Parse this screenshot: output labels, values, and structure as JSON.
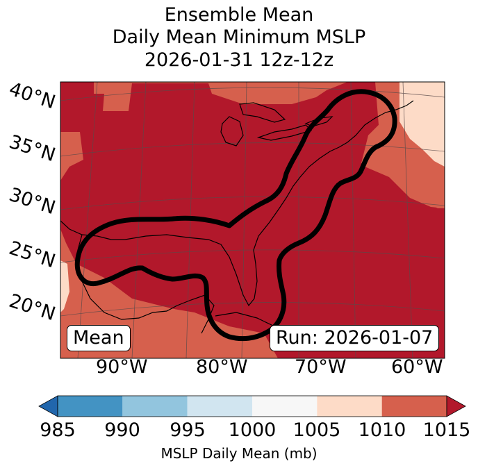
{
  "title": {
    "line1": "Ensemble Mean",
    "line2": "Daily Mean Minimum MSLP",
    "line3": "2026-01-31 12z-12z"
  },
  "map": {
    "region": "Gulf of Mexico and US East Coast",
    "latitude_labels": [
      "40°N",
      "35°N",
      "30°N",
      "25°N",
      "20°N"
    ],
    "longitude_labels": [
      "90°W",
      "80°W",
      "70°W",
      "60°W"
    ],
    "field": "Ensemble mean daily mean minimum MSLP",
    "outlined_area": "Thick black contour enclosing Gulf of Mexico, Florida and US East Coast region",
    "colors": {
      "bin_1005_1010": "#fddbc7",
      "bin_1010_1015": "#d6604d",
      "bin_above_1015": "#b2182b",
      "contour": "#000000",
      "grid": "#5a4a4a"
    }
  },
  "labels": {
    "mean_box": "Mean",
    "run_box": "Run: 2026-01-07"
  },
  "colorbar": {
    "label": "MSLP Daily Mean (mb)",
    "ticks": [
      "985",
      "990",
      "995",
      "1000",
      "1005",
      "1010",
      "1015"
    ],
    "bins": [
      {
        "from": 985,
        "to": 990,
        "color": "#4393c3"
      },
      {
        "from": 990,
        "to": 995,
        "color": "#92c5de"
      },
      {
        "from": 995,
        "to": 1000,
        "color": "#d1e5f0"
      },
      {
        "from": 1000,
        "to": 1005,
        "color": "#f7f7f7"
      },
      {
        "from": 1005,
        "to": 1010,
        "color": "#fddbc7"
      },
      {
        "from": 1010,
        "to": 1015,
        "color": "#d6604d"
      }
    ],
    "under_color": "#2166ac",
    "over_color": "#b2182b"
  }
}
